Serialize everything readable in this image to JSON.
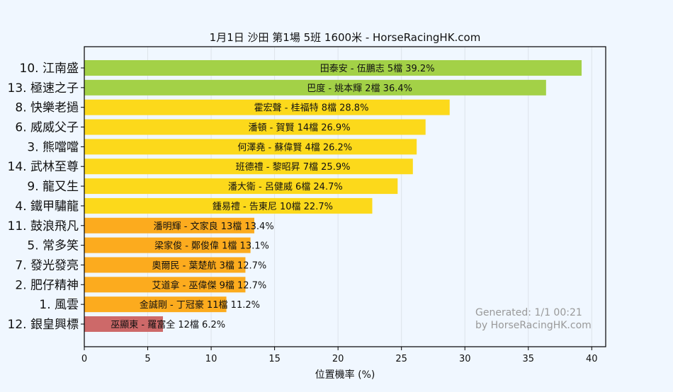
{
  "chart_data": {
    "type": "bar",
    "orientation": "horizontal",
    "title": "1月1日  沙田  第1場  5班  1600米 - HorseRacingHK.com",
    "xlabel": "位置機率 (%)",
    "ylabel": "",
    "xlim": [
      0,
      41.1
    ],
    "xticks": [
      0,
      5,
      10,
      15,
      20,
      25,
      30,
      35,
      40
    ],
    "grid": "vertical",
    "categories": [
      "10. 江南盛",
      "13. 極速之子",
      "8. 快樂老撾",
      "6. 威威父子",
      "3. 熊噹噹",
      "14. 武林至尊",
      "9. 龍又生",
      "4. 鐵甲驌龍",
      "11. 鼓浪飛凡",
      "5. 常多笑",
      "7. 發光發亮",
      "2. 肥仔精神",
      "1. 風雲",
      "12. 銀皇興標"
    ],
    "values": [
      39.2,
      36.4,
      28.8,
      26.9,
      26.2,
      25.9,
      24.7,
      22.7,
      13.4,
      13.1,
      12.7,
      12.7,
      11.2,
      6.2
    ],
    "bar_labels": [
      "田泰安 - 伍鵬志 5檔  39.2%",
      "巴度 - 姚本輝 2檔  36.4%",
      "霍宏聲 - 桂福特 8檔  28.8%",
      "潘頓 - 賀賢 14檔  26.9%",
      "何澤堯 - 蘇偉賢 4檔  26.2%",
      "班德禮 - 黎昭昇 7檔  25.9%",
      "潘大衛 - 呂健威 6檔  24.7%",
      "鍾易禮 - 告東尼 10檔  22.7%",
      "潘明輝 - 文家良 13檔  13.4%",
      "梁家俊 - 鄭俊偉 1檔  13.1%",
      "奧爾民 - 葉楚航 3檔  12.7%",
      "艾道拿 - 巫偉傑 9檔  12.7%",
      "金誠剛 - 丁冠豪 11檔  11.2%",
      "巫顯東 - 羅富全 12檔  6.2%"
    ],
    "colors": [
      "#a3d147",
      "#a3d147",
      "#fcd91b",
      "#fcd91b",
      "#fcd91b",
      "#fcd91b",
      "#fcd91b",
      "#fcd91b",
      "#fcab1e",
      "#fcab1e",
      "#fcab1e",
      "#fcab1e",
      "#fcab1e",
      "#cd6969"
    ],
    "annotation": [
      "Generated: 1/1 00:21",
      "by HorseRacingHK.com"
    ]
  }
}
